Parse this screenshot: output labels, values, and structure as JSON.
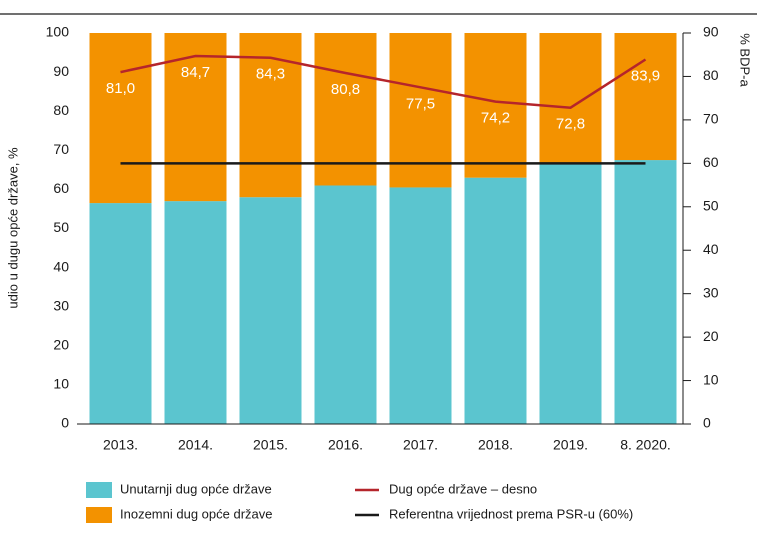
{
  "chart_data": {
    "type": "bar",
    "ylabel": "udio u dugu opće države, %",
    "y2label": "% BDP-a",
    "categories": [
      "2013.",
      "2014.",
      "2015.",
      "2016.",
      "2017.",
      "2018.",
      "2019.",
      "8. 2020."
    ],
    "stacked": true,
    "series": [
      {
        "name": "Unutarnji dug opće države",
        "type": "bar",
        "color": "#5bc5cf",
        "values": [
          56.5,
          57,
          58,
          61,
          60.5,
          63,
          66.5,
          67.5
        ]
      },
      {
        "name": "Inozemni dug opće države",
        "type": "bar",
        "color": "#f39200",
        "values": [
          43.5,
          43,
          42,
          39,
          39.5,
          37,
          33.5,
          32.5
        ]
      },
      {
        "name": "Dug opće države – desno",
        "type": "line",
        "axis": "y2",
        "color": "#b5252b",
        "values": [
          81.0,
          84.7,
          84.3,
          80.8,
          77.5,
          74.2,
          72.8,
          83.9
        ],
        "value_labels": [
          "81,0",
          "84,7",
          "84,3",
          "80,8",
          "77,5",
          "74,2",
          "72,8",
          "83,9"
        ]
      },
      {
        "name": "Referentna vrijednost prema PSR-u (60%)",
        "type": "line",
        "axis": "y2",
        "color": "#1a1a1a",
        "values": [
          60,
          60,
          60,
          60,
          60,
          60,
          60,
          60
        ]
      }
    ],
    "ylim": [
      0,
      100
    ],
    "yticks": [
      0,
      10,
      20,
      30,
      40,
      50,
      60,
      70,
      80,
      90,
      100
    ],
    "y2lim": [
      0,
      90
    ],
    "y2ticks": [
      0,
      10,
      20,
      30,
      40,
      50,
      60,
      70,
      80,
      90
    ],
    "grid": false,
    "legend": "bottom"
  }
}
